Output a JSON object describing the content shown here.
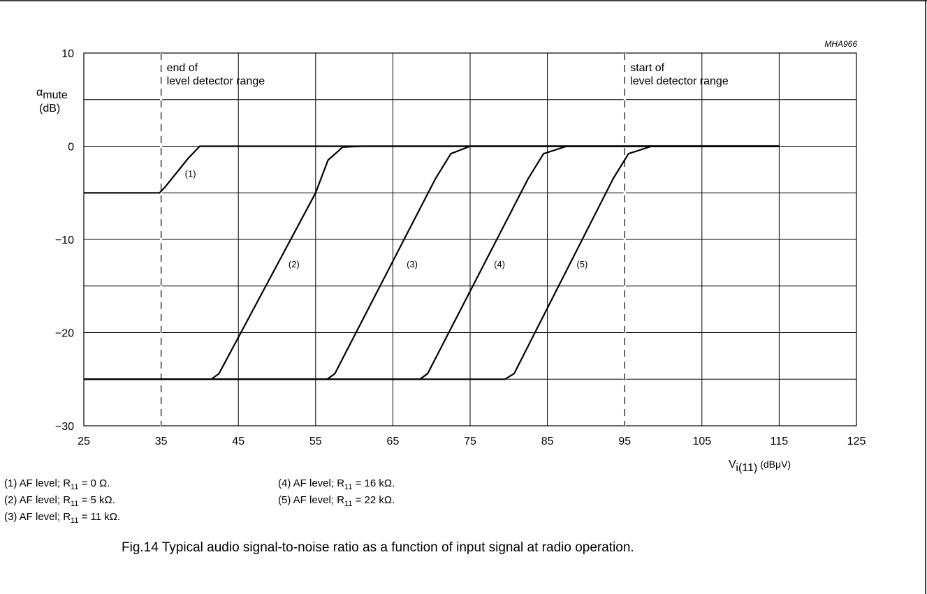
{
  "chart_data": {
    "type": "line",
    "figure_id": "MHA966",
    "caption": "Fig.14  Typical audio signal-to-noise ratio as a function of input signal at radio operation.",
    "xlabel": {
      "main": "V",
      "sub": "i(11)",
      "unit": "(dBμV)"
    },
    "ylabel": {
      "main": "α",
      "sub": "mute",
      "unit": "(dB)"
    },
    "xlim": [
      25,
      125
    ],
    "ylim": [
      -30,
      10
    ],
    "x_ticks": [
      25,
      35,
      45,
      55,
      65,
      75,
      85,
      95,
      105,
      115,
      125
    ],
    "y_ticks": [
      10,
      0,
      -10,
      -20,
      -30
    ],
    "y_tick_labels": [
      "10",
      "0",
      "−10",
      "−20",
      "−30"
    ],
    "y_grid": [
      10,
      5,
      0,
      -5,
      -10,
      -15,
      -20,
      -25,
      -30
    ],
    "grid": true,
    "annotations": [
      {
        "x": 35,
        "lines": [
          "end of",
          "level detector range"
        ]
      },
      {
        "x": 95,
        "lines": [
          "start of",
          "level detector range"
        ]
      }
    ],
    "series": [
      {
        "name": "(1)",
        "label_at": [
          38.8,
          -3.3
        ],
        "points": [
          [
            25,
            -5
          ],
          [
            34.8,
            -5
          ],
          [
            35.5,
            -4.4
          ],
          [
            38.5,
            -1.3
          ],
          [
            40,
            0
          ],
          [
            41.5,
            0
          ],
          [
            115,
            0
          ]
        ]
      },
      {
        "name": "(2)",
        "label_at": [
          52.2,
          -13
        ],
        "points": [
          [
            25,
            -25
          ],
          [
            41.5,
            -25
          ],
          [
            42.5,
            -24.4
          ],
          [
            55,
            -5
          ],
          [
            56.6,
            -1.5
          ],
          [
            58.5,
            -0.1
          ],
          [
            61,
            0
          ],
          [
            115,
            0
          ]
        ]
      },
      {
        "name": "(3)",
        "label_at": [
          67.5,
          -13
        ],
        "points": [
          [
            25,
            -25
          ],
          [
            56.5,
            -25
          ],
          [
            57.5,
            -24.4
          ],
          [
            70.5,
            -3.5
          ],
          [
            72.5,
            -0.8
          ],
          [
            75,
            0
          ],
          [
            115,
            0
          ]
        ]
      },
      {
        "name": "(4)",
        "label_at": [
          78.8,
          -13
        ],
        "points": [
          [
            25,
            -25
          ],
          [
            68.5,
            -25
          ],
          [
            69.5,
            -24.4
          ],
          [
            82.5,
            -3.5
          ],
          [
            84.5,
            -0.8
          ],
          [
            87.5,
            0
          ],
          [
            115,
            0
          ]
        ]
      },
      {
        "name": "(5)",
        "label_at": [
          89.5,
          -13
        ],
        "points": [
          [
            25,
            -25
          ],
          [
            79.5,
            -25
          ],
          [
            80.7,
            -24.4
          ],
          [
            93.5,
            -3.5
          ],
          [
            95.5,
            -0.8
          ],
          [
            98.5,
            0
          ],
          [
            115,
            0
          ]
        ]
      }
    ],
    "legend": {
      "left": [
        {
          "idx": "(1)",
          "text": "AF level; R",
          "sub": "11",
          "value": " = 0 Ω."
        },
        {
          "idx": "(2)",
          "text": "AF level; R",
          "sub": "11",
          "value": " = 5 kΩ."
        },
        {
          "idx": "(3)",
          "text": "AF level; R",
          "sub": "11",
          "value": " = 11 kΩ."
        }
      ],
      "right": [
        {
          "idx": "(4)",
          "text": "AF level; R",
          "sub": "11",
          "value": " = 16 kΩ."
        },
        {
          "idx": "(5)",
          "text": "AF level; R",
          "sub": "11",
          "value": " = 22 kΩ."
        }
      ]
    }
  }
}
